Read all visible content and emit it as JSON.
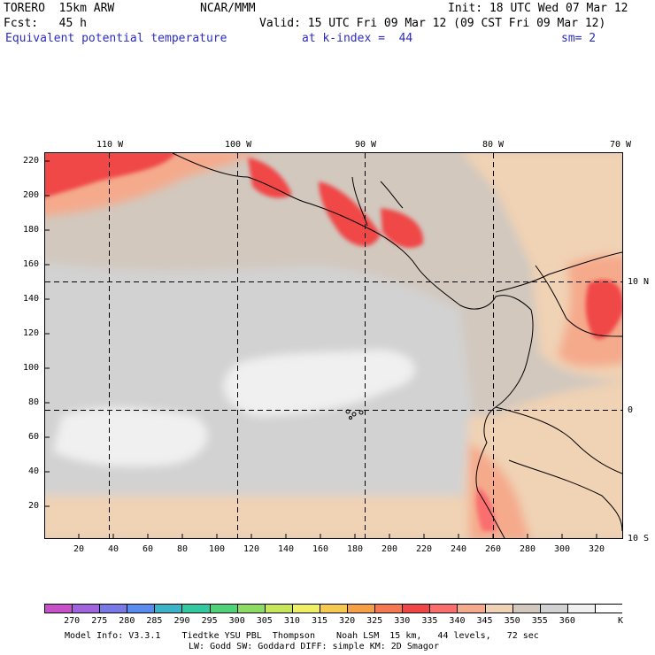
{
  "header": {
    "model": "TORERO  15km ARW",
    "center": "NCAR/MMM",
    "init": "Init: 18 UTC Wed 07 Mar 12",
    "fcst": "Fcst:   45 h",
    "valid": "Valid: 15 UTC Fri 09 Mar 12 (09 CST Fri 09 Mar 12)",
    "field": "Equivalent potential temperature",
    "level": "at k-index =  44",
    "smooth": "sm= 2"
  },
  "map": {
    "lon_labels": [
      "110 W",
      "100 W",
      "90 W",
      "80 W",
      "70 W"
    ],
    "lat_labels": [
      "10 N",
      "0",
      "10 S"
    ],
    "y_ticks": [
      "220",
      "200",
      "180",
      "160",
      "140",
      "120",
      "100",
      "80",
      "60",
      "40",
      "20"
    ],
    "x_ticks": [
      "20",
      "40",
      "60",
      "80",
      "100",
      "120",
      "140",
      "160",
      "180",
      "200",
      "220",
      "240",
      "260",
      "280",
      "300",
      "320"
    ]
  },
  "colorbar": {
    "labels": [
      "270",
      "275",
      "280",
      "285",
      "290",
      "295",
      "300",
      "305",
      "310",
      "315",
      "320",
      "325",
      "330",
      "335",
      "340",
      "345",
      "350",
      "355",
      "360"
    ],
    "unit": "K",
    "colors": [
      "#c850c8",
      "#a064dc",
      "#7878e6",
      "#5a8cf0",
      "#3cb4c8",
      "#32c8a0",
      "#50d278",
      "#8cdc64",
      "#c8e65a",
      "#f0f064",
      "#f5c850",
      "#f5a046",
      "#f57850",
      "#f04646",
      "#fa6e6e",
      "#f5aa8c",
      "#f0d2b4",
      "#d2c8be",
      "#d2d2d2",
      "#f0f0f0",
      "#ffffff"
    ]
  },
  "footer": {
    "line1": "Model Info: V3.3.1    Tiedtke YSU PBL  Thompson    Noah LSM  15 km,   44 levels,   72 sec",
    "line2": "LW: Godd SW: Goddard DIFF: simple KM: 2D Smagor"
  }
}
